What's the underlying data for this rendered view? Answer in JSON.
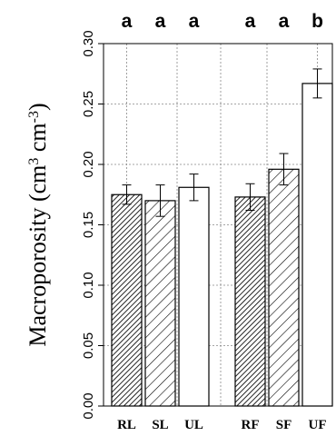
{
  "chart_data": {
    "type": "bar",
    "categories": [
      "RL",
      "SL",
      "UL",
      "RF",
      "SF",
      "UF"
    ],
    "values": [
      0.175,
      0.17,
      0.181,
      0.173,
      0.196,
      0.267
    ],
    "errors": [
      0.008,
      0.013,
      0.011,
      0.011,
      0.013,
      0.012
    ],
    "significance_letters": [
      "a",
      "a",
      "a",
      "a",
      "a",
      "b"
    ],
    "fill_patterns": [
      "dense-hatch",
      "sparse-hatch",
      "solid-white",
      "dense-hatch",
      "sparse-hatch",
      "solid-white"
    ],
    "ylabel_parts": [
      "Macroporosity (cm",
      "3",
      " cm",
      "-3",
      ")"
    ],
    "ylim": [
      0,
      0.3
    ],
    "yticks": [
      "0.00",
      "0.05",
      "0.10",
      "0.15",
      "0.20",
      "0.25",
      "0.30"
    ],
    "grid": true,
    "colors": {
      "bar_stroke": "#000000",
      "bar_fill": "#ffffff",
      "grid": "#888888"
    }
  }
}
